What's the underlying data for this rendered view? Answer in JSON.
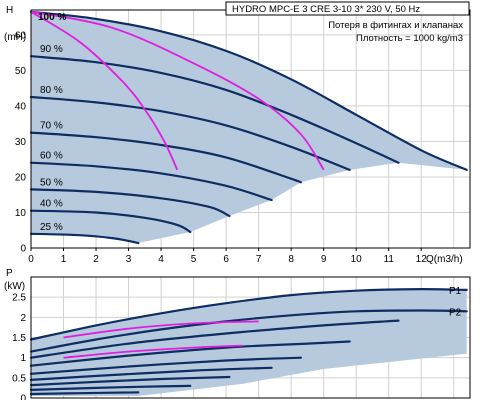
{
  "colors": {
    "area": "#b7cadd",
    "curve": "#0d2d63",
    "highlight": "#e01ee0",
    "grid": "#d0d0d0"
  },
  "header": {
    "title": "HYDRO MPC-E 3 CRE 3-10    3* 230 V, 50 Hz",
    "note1": "Потеря в фитингах и клапанах",
    "note2": "Плотность = 1000 kg/m3"
  },
  "chart_data": [
    {
      "type": "line",
      "ylabel_top": "H",
      "ylabel_unit": "(mH)",
      "xlabel": "Q(m3/h)",
      "xlim": [
        0,
        13.5
      ],
      "ylim": [
        0,
        67
      ],
      "xticks": [
        "0",
        "1",
        "2",
        "3",
        "4",
        "5",
        "6",
        "7",
        "8",
        "9",
        "10",
        "11",
        "12"
      ],
      "yticks": [
        "0",
        "10",
        "20",
        "30",
        "40",
        "50",
        "60"
      ],
      "speed_labels": [
        "100 %",
        "90 %",
        "80 %",
        "70 %",
        "60 %",
        "50 %",
        "40 %",
        "25 %"
      ],
      "speed_curves": [
        {
          "label": "100 %",
          "points": [
            [
              0,
              66.5
            ],
            [
              2,
              64.5
            ],
            [
              4,
              61
            ],
            [
              6,
              55.5
            ],
            [
              8,
              47.5
            ],
            [
              10,
              37.5
            ],
            [
              12,
              27.5
            ],
            [
              13.4,
              22
            ]
          ]
        },
        {
          "label": "90 %",
          "points": [
            [
              0,
              54
            ],
            [
              2,
              52.3
            ],
            [
              4,
              49.3
            ],
            [
              6,
              44.5
            ],
            [
              8,
              37.5
            ],
            [
              10,
              29.5
            ],
            [
              11.3,
              24
            ]
          ]
        },
        {
          "label": "80 %",
          "points": [
            [
              0,
              42.5
            ],
            [
              2,
              41
            ],
            [
              4,
              38.5
            ],
            [
              6,
              34.5
            ],
            [
              8,
              28.5
            ],
            [
              9.8,
              22
            ]
          ]
        },
        {
          "label": "70 %",
          "points": [
            [
              0,
              32.5
            ],
            [
              2,
              31.2
            ],
            [
              4,
              29
            ],
            [
              6,
              25.5
            ],
            [
              8,
              19.5
            ],
            [
              8.3,
              18.5
            ]
          ]
        },
        {
          "label": "60 %",
          "points": [
            [
              0,
              24
            ],
            [
              2,
              23
            ],
            [
              4,
              21
            ],
            [
              6,
              17.5
            ],
            [
              7.4,
              13.5
            ]
          ]
        },
        {
          "label": "50 %",
          "points": [
            [
              0,
              16.5
            ],
            [
              2,
              15.8
            ],
            [
              4,
              14
            ],
            [
              5.5,
              11.5
            ],
            [
              6.1,
              9
            ]
          ]
        },
        {
          "label": "40 %",
          "points": [
            [
              0,
              10.5
            ],
            [
              2,
              10
            ],
            [
              3.5,
              8.5
            ],
            [
              4.5,
              6.5
            ],
            [
              4.9,
              4.5
            ]
          ]
        },
        {
          "label": "25 %",
          "points": [
            [
              0,
              4
            ],
            [
              1.5,
              3.6
            ],
            [
              2.5,
              2.8
            ],
            [
              3,
              2
            ],
            [
              3.3,
              1.4
            ]
          ]
        }
      ],
      "magenta_curves": [
        [
          [
            0,
            66.5
          ],
          [
            1.5,
            58
          ],
          [
            2.8,
            47
          ],
          [
            3.5,
            39
          ],
          [
            4.1,
            30
          ],
          [
            4.5,
            22
          ]
        ],
        [
          [
            0,
            66.5
          ],
          [
            2.5,
            62
          ],
          [
            5,
            52
          ],
          [
            7,
            42
          ],
          [
            8.3,
            32
          ],
          [
            9,
            22
          ]
        ]
      ]
    },
    {
      "type": "line",
      "ylabel_top": "P",
      "ylabel_unit": "(kW)",
      "xlim": [
        0,
        13.5
      ],
      "ylim": [
        0,
        3.0
      ],
      "yticks": [
        "0",
        "0.5",
        "1",
        "1.5",
        "2",
        "2.5"
      ],
      "series_labels": [
        "P1",
        "P2"
      ],
      "power_curves": [
        {
          "label": "P1",
          "points": [
            [
              0,
              1.45
            ],
            [
              2,
              1.8
            ],
            [
              4,
              2.1
            ],
            [
              6,
              2.35
            ],
            [
              8,
              2.55
            ],
            [
              10,
              2.66
            ],
            [
              12,
              2.7
            ],
            [
              13.4,
              2.68
            ]
          ]
        },
        {
          "label": "P2",
          "points": [
            [
              0,
              1.15
            ],
            [
              2,
              1.45
            ],
            [
              4,
              1.7
            ],
            [
              6,
              1.9
            ],
            [
              8,
              2.05
            ],
            [
              10,
              2.15
            ],
            [
              12,
              2.17
            ],
            [
              13.4,
              2.15
            ]
          ]
        },
        {
          "label": "",
          "points": [
            [
              0,
              1.0
            ],
            [
              3,
              1.35
            ],
            [
              6,
              1.6
            ],
            [
              9,
              1.8
            ],
            [
              11.3,
              1.92
            ]
          ]
        },
        {
          "label": "",
          "points": [
            [
              0,
              0.8
            ],
            [
              3,
              1.05
            ],
            [
              6,
              1.25
            ],
            [
              8.5,
              1.35
            ],
            [
              9.8,
              1.4
            ]
          ]
        },
        {
          "label": "",
          "points": [
            [
              0,
              0.6
            ],
            [
              3,
              0.78
            ],
            [
              6,
              0.93
            ],
            [
              8.3,
              1.0
            ]
          ]
        },
        {
          "label": "",
          "points": [
            [
              0,
              0.45
            ],
            [
              2.5,
              0.57
            ],
            [
              5,
              0.68
            ],
            [
              7.4,
              0.75
            ]
          ]
        },
        {
          "label": "",
          "points": [
            [
              0,
              0.32
            ],
            [
              2,
              0.4
            ],
            [
              4,
              0.47
            ],
            [
              6.1,
              0.52
            ]
          ]
        },
        {
          "label": "",
          "points": [
            [
              0,
              0.2
            ],
            [
              2,
              0.25
            ],
            [
              3.5,
              0.28
            ],
            [
              4.9,
              0.3
            ]
          ]
        },
        {
          "label": "",
          "points": [
            [
              0,
              0.1
            ],
            [
              1.5,
              0.12
            ],
            [
              3.3,
              0.14
            ]
          ]
        }
      ],
      "magenta_curves": [
        [
          [
            1,
            1.5
          ],
          [
            3,
            1.72
          ],
          [
            5,
            1.85
          ],
          [
            7,
            1.9
          ]
        ],
        [
          [
            1,
            1.0
          ],
          [
            3,
            1.15
          ],
          [
            5,
            1.25
          ],
          [
            6.5,
            1.3
          ]
        ]
      ]
    }
  ]
}
